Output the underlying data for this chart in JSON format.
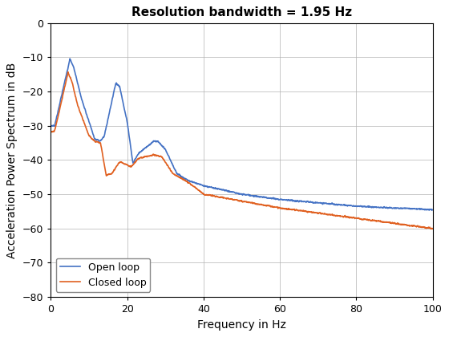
{
  "title": "Resolution bandwidth = 1.95 Hz",
  "xlabel": "Frequency in Hz",
  "ylabel": "Acceleration Power Spectrum in dB",
  "xlim": [
    0,
    100
  ],
  "ylim": [
    -80,
    0
  ],
  "yticks": [
    0,
    -10,
    -20,
    -30,
    -40,
    -50,
    -60,
    -70,
    -80
  ],
  "xticks": [
    0,
    20,
    40,
    60,
    80,
    100
  ],
  "open_loop_color": "#4472C4",
  "closed_loop_color": "#E06020",
  "legend_labels": [
    "Open loop",
    "Closed loop"
  ],
  "background_color": "#ffffff",
  "grid_color": "#b0b0b0",
  "title_fontsize": 11,
  "label_fontsize": 10,
  "tick_fontsize": 9
}
